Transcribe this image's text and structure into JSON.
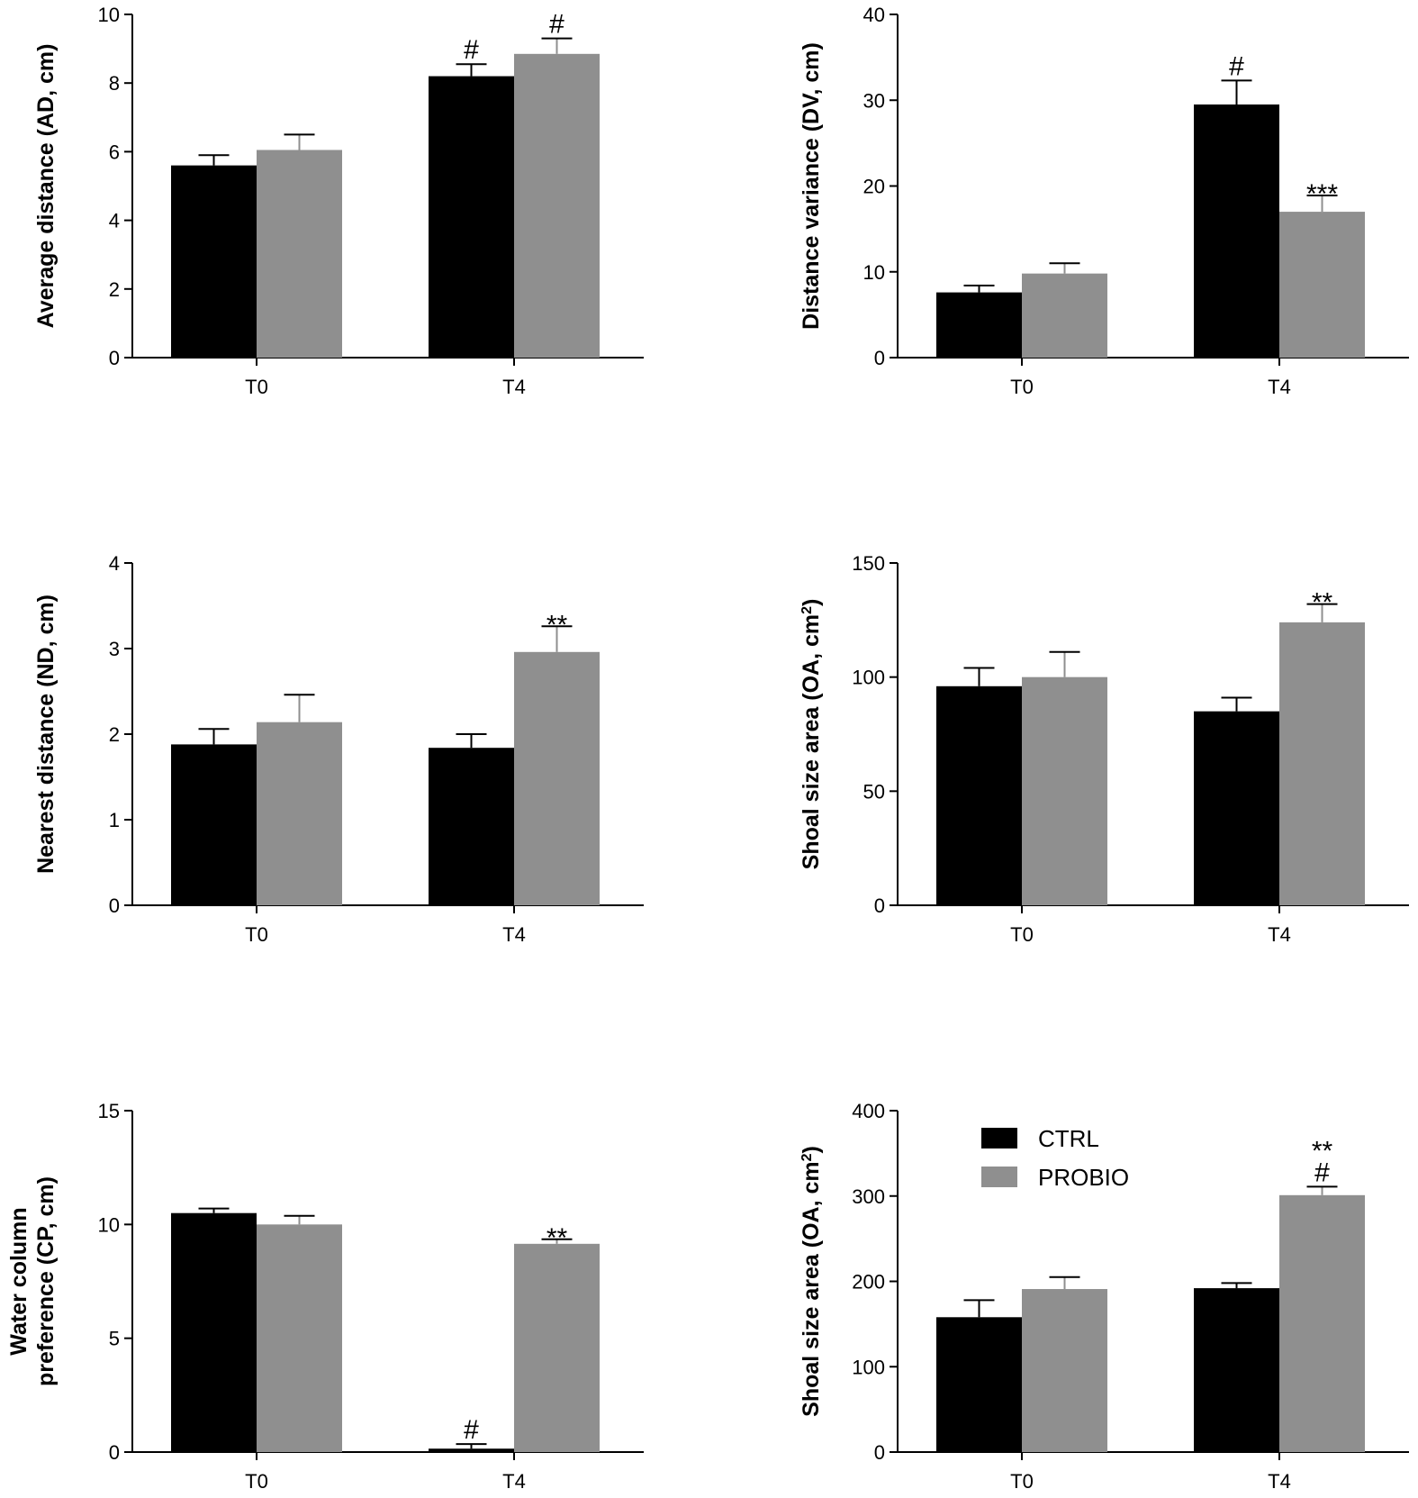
{
  "colors": {
    "CTRL": "#000000",
    "PROBIO": "#8f8f8f",
    "axis": "#000000"
  },
  "legend": [
    {
      "name": "CTRL",
      "label": "CTRL"
    },
    {
      "name": "PROBIO",
      "label": "PROBIO"
    }
  ],
  "chart_data": [
    {
      "type": "bar",
      "id": "ad",
      "ylabel_lines": [
        "Average distance (AD, cm)"
      ],
      "ylim": [
        0,
        10
      ],
      "yticks": [
        "0",
        "2",
        "4",
        "6",
        "8",
        "10"
      ],
      "categories": [
        "T0",
        "T4"
      ],
      "series": [
        {
          "name": "CTRL",
          "values": [
            5.6,
            8.2
          ],
          "errors": [
            0.3,
            0.35
          ]
        },
        {
          "name": "PROBIO",
          "values": [
            6.05,
            8.85
          ],
          "errors": [
            0.45,
            0.45
          ]
        }
      ],
      "annotations": [
        {
          "series": "CTRL",
          "category": "T4",
          "lines": [
            "#"
          ]
        },
        {
          "series": "PROBIO",
          "category": "T4",
          "lines": [
            "#"
          ]
        }
      ]
    },
    {
      "type": "bar",
      "id": "dv",
      "ylabel_lines": [
        "Distance variance (DV, cm)"
      ],
      "ylim": [
        0,
        40
      ],
      "yticks": [
        "0",
        "10",
        "20",
        "30",
        "40"
      ],
      "categories": [
        "T0",
        "T4"
      ],
      "series": [
        {
          "name": "CTRL",
          "values": [
            7.6,
            29.5
          ],
          "errors": [
            0.8,
            2.8
          ]
        },
        {
          "name": "PROBIO",
          "values": [
            9.8,
            17.0
          ],
          "errors": [
            1.2,
            1.9
          ]
        }
      ],
      "annotations": [
        {
          "series": "CTRL",
          "category": "T4",
          "lines": [
            "#"
          ]
        },
        {
          "series": "PROBIO",
          "category": "T4",
          "lines": [
            "***"
          ]
        }
      ]
    },
    {
      "type": "bar",
      "id": "nd",
      "ylabel_lines": [
        "Nearest distance (ND, cm)"
      ],
      "ylim": [
        0,
        4
      ],
      "yticks": [
        "0",
        "1",
        "2",
        "3",
        "4"
      ],
      "categories": [
        "T0",
        "T4"
      ],
      "series": [
        {
          "name": "CTRL",
          "values": [
            1.88,
            1.84
          ],
          "errors": [
            0.18,
            0.16
          ]
        },
        {
          "name": "PROBIO",
          "values": [
            2.14,
            2.96
          ],
          "errors": [
            0.32,
            0.3
          ]
        }
      ],
      "annotations": [
        {
          "series": "PROBIO",
          "category": "T4",
          "lines": [
            "**"
          ]
        }
      ]
    },
    {
      "type": "bar",
      "id": "oa1",
      "ylabel_lines": [
        "Shoal size area (OA, cm",
        "2",
        ")"
      ],
      "ylabel_super": true,
      "ylim": [
        0,
        150
      ],
      "yticks": [
        "0",
        "50",
        "100",
        "150"
      ],
      "categories": [
        "T0",
        "T4"
      ],
      "series": [
        {
          "name": "CTRL",
          "values": [
            96,
            85
          ],
          "errors": [
            8,
            6
          ]
        },
        {
          "name": "PROBIO",
          "values": [
            100,
            124
          ],
          "errors": [
            11,
            8
          ]
        }
      ],
      "annotations": [
        {
          "series": "PROBIO",
          "category": "T4",
          "lines": [
            "**"
          ]
        }
      ]
    },
    {
      "type": "bar",
      "id": "cp",
      "ylabel_lines": [
        "Water column",
        "preference (CP, cm)"
      ],
      "ylim": [
        0,
        15
      ],
      "yticks": [
        "0",
        "5",
        "10",
        "15"
      ],
      "categories": [
        "T0",
        "T4"
      ],
      "series": [
        {
          "name": "CTRL",
          "values": [
            10.5,
            0.15
          ],
          "errors": [
            0.2,
            0.2
          ]
        },
        {
          "name": "PROBIO",
          "values": [
            10.0,
            9.15
          ],
          "errors": [
            0.38,
            0.2
          ]
        }
      ],
      "annotations": [
        {
          "series": "CTRL",
          "category": "T4",
          "lines": [
            "#"
          ]
        },
        {
          "series": "PROBIO",
          "category": "T4",
          "lines": [
            "**"
          ]
        }
      ]
    },
    {
      "type": "bar",
      "id": "oa2",
      "ylabel_lines": [
        "Shoal size area (OA, cm",
        "2",
        ")"
      ],
      "ylabel_super": true,
      "ylim": [
        0,
        400
      ],
      "yticks": [
        "0",
        "100",
        "200",
        "300",
        "400"
      ],
      "categories": [
        "T0",
        "T4"
      ],
      "series": [
        {
          "name": "CTRL",
          "values": [
            158,
            192
          ],
          "errors": [
            20,
            6
          ]
        },
        {
          "name": "PROBIO",
          "values": [
            191,
            301
          ],
          "errors": [
            14,
            10
          ]
        }
      ],
      "annotations": [
        {
          "series": "PROBIO",
          "category": "T4",
          "lines": [
            "**",
            "#"
          ]
        }
      ],
      "has_legend": true
    }
  ]
}
